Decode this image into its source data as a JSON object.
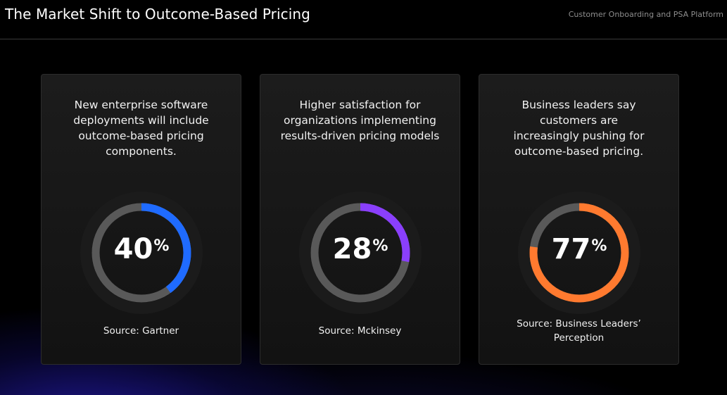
{
  "header": {
    "title": "The Market Shift to Outcome-Based Pricing",
    "subtitle": "Customer Onboarding and PSA Platform"
  },
  "cards": [
    {
      "description": "New enterprise software deployments will include outcome-based pricing components.",
      "value": "40",
      "unit": "%",
      "fraction": 0.4,
      "color": "#1f6bff",
      "source": "Source: Gartner"
    },
    {
      "description": "Higher satisfaction for organizations implementing results-driven pricing models",
      "value": "28",
      "unit": "%",
      "fraction": 0.28,
      "color": "#8a3ffc",
      "source": "Source: Mckinsey"
    },
    {
      "description": "Business leaders say customers are increasingly pushing for outcome-based pricing.",
      "value": "77",
      "unit": "%",
      "fraction": 0.77,
      "color": "#ff7a2f",
      "source": "Source: Business Leaders’ Perception"
    }
  ],
  "colors": {
    "track": "#595959",
    "halo": "#1b1b1b"
  }
}
